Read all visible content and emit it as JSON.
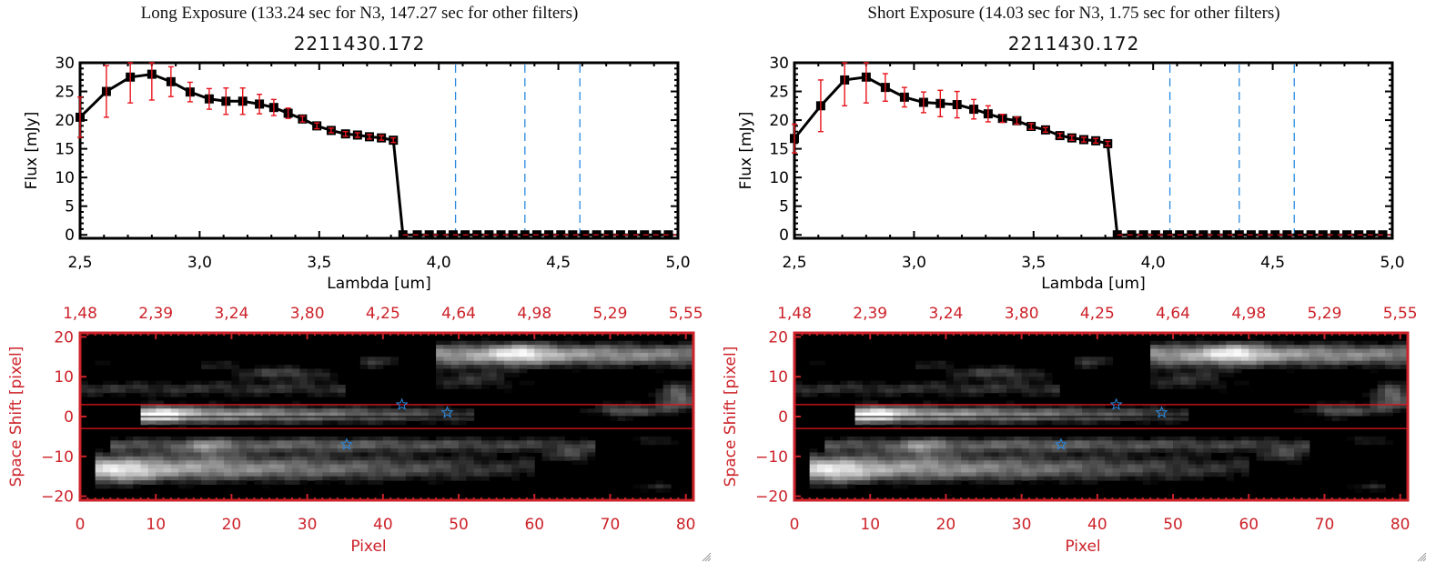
{
  "panels": [
    {
      "id": "long",
      "exposure_title": "Long Exposure (133.24 sec for N3, 147.27 sec for other filters)",
      "object_title": "2211430.172"
    },
    {
      "id": "short",
      "exposure_title": "Short Exposure (14.03 sec for N3, 1.75 sec for other filters)",
      "object_title": "2211430.172"
    }
  ],
  "colors": {
    "spectrum_line": "#000000",
    "error_bar": "#e8141c",
    "filter_line": "#2a8ae0",
    "image_axis": "#cc2229",
    "zero_line": "#e8141c",
    "star_marker": "#2a8ae0"
  },
  "chart_data": [
    {
      "type": "line",
      "panel": "long",
      "title": "2211430.172",
      "xlabel": "Lambda [um]",
      "ylabel": "Flux [mJy]",
      "xlim": [
        2.5,
        5.0
      ],
      "ylim": [
        -1,
        30
      ],
      "xticks": [
        "2.5",
        "3.0",
        "3.5",
        "4.0",
        "4.5",
        "5.0"
      ],
      "yticks": [
        "0",
        "5",
        "10",
        "15",
        "20",
        "25",
        "30"
      ],
      "x": [
        2.5,
        2.61,
        2.71,
        2.8,
        2.88,
        2.96,
        3.04,
        3.11,
        3.18,
        3.25,
        3.31,
        3.37,
        3.43,
        3.49,
        3.55,
        3.61,
        3.66,
        3.71,
        3.76,
        3.81,
        3.85,
        3.91,
        3.96,
        4.01,
        4.06,
        4.11,
        4.16,
        4.21,
        4.26,
        4.31,
        4.36,
        4.41,
        4.46,
        4.51,
        4.56,
        4.61,
        4.66,
        4.71,
        4.76,
        4.81,
        4.86,
        4.91,
        4.96
      ],
      "y": [
        20.5,
        25.0,
        27.5,
        28.0,
        26.7,
        24.9,
        23.7,
        23.3,
        23.3,
        22.8,
        22.2,
        21.2,
        20.2,
        19.0,
        18.2,
        17.6,
        17.4,
        17.1,
        16.9,
        16.5,
        0,
        0,
        0,
        0,
        0,
        0,
        0,
        0,
        0,
        0,
        0,
        0,
        0,
        0,
        0,
        0,
        0,
        0,
        0,
        0,
        0,
        0,
        0
      ],
      "yerr": [
        3.5,
        4.5,
        4.5,
        4.5,
        2.6,
        1.7,
        1.8,
        2.3,
        2.3,
        1.7,
        1.4,
        0.9,
        0.5,
        0.5,
        0.4,
        0.4,
        0.4,
        0.4,
        0.4,
        0.4,
        0,
        0,
        0,
        0,
        0,
        0,
        0,
        0,
        0,
        0,
        0,
        0,
        0,
        0,
        0,
        0,
        0,
        0,
        0,
        0,
        0,
        0,
        0
      ],
      "filter_lines_x": [
        4.07,
        4.36,
        4.59
      ],
      "zero_reference_line": 0
    },
    {
      "type": "line",
      "panel": "short",
      "title": "2211430.172",
      "xlabel": "Lambda [um]",
      "ylabel": "Flux [mJy]",
      "xlim": [
        2.5,
        5.0
      ],
      "ylim": [
        -1,
        30
      ],
      "xticks": [
        "2.5",
        "3.0",
        "3.5",
        "4.0",
        "4.5",
        "5.0"
      ],
      "yticks": [
        "0",
        "5",
        "10",
        "15",
        "20",
        "25",
        "30"
      ],
      "x": [
        2.5,
        2.61,
        2.71,
        2.8,
        2.88,
        2.96,
        3.04,
        3.11,
        3.18,
        3.25,
        3.31,
        3.37,
        3.43,
        3.49,
        3.55,
        3.61,
        3.66,
        3.71,
        3.76,
        3.81,
        3.85,
        3.91,
        3.96,
        4.01,
        4.06,
        4.11,
        4.16,
        4.21,
        4.26,
        4.31,
        4.36,
        4.41,
        4.46,
        4.51,
        4.56,
        4.61,
        4.66,
        4.71,
        4.76,
        4.81,
        4.86,
        4.91,
        4.96
      ],
      "y": [
        16.8,
        22.5,
        27.0,
        27.5,
        25.7,
        24.0,
        23.1,
        22.9,
        22.7,
        21.9,
        21.1,
        20.3,
        19.9,
        18.9,
        18.3,
        17.3,
        16.9,
        16.6,
        16.4,
        15.9,
        0,
        0,
        0,
        0,
        0,
        0,
        0,
        0,
        0,
        0,
        0,
        0,
        0,
        0,
        0,
        0,
        0,
        0,
        0,
        0,
        0,
        0,
        0
      ],
      "yerr": [
        2.5,
        4.5,
        4.5,
        4.5,
        2.4,
        1.7,
        1.8,
        2.3,
        2.3,
        1.7,
        1.4,
        0.7,
        0.6,
        0.5,
        0.4,
        0.4,
        0.4,
        0.4,
        0.4,
        0.4,
        0,
        0,
        0,
        0,
        0,
        0,
        0,
        0,
        0,
        0,
        0,
        0,
        0,
        0,
        0,
        0,
        0,
        0,
        0,
        0,
        0,
        0,
        0
      ],
      "filter_lines_x": [
        4.07,
        4.36,
        4.59
      ],
      "zero_reference_line": 0
    },
    {
      "type": "heatmap",
      "panel": "long",
      "xlabel": "Pixel",
      "ylabel": "Space Shift [pixel]",
      "xlim": [
        0,
        81
      ],
      "ylim": [
        -21,
        21
      ],
      "xticks": [
        "0",
        "10",
        "20",
        "30",
        "40",
        "50",
        "60",
        "70",
        "80"
      ],
      "yticks": [
        "-20",
        "-10",
        "0",
        "10",
        "20"
      ],
      "top_axis_ticks": [
        "1.48",
        "2.39",
        "3.24",
        "3.80",
        "4.25",
        "4.64",
        "4.98",
        "5.29",
        "5.55"
      ],
      "aperture_lines_y": [
        3,
        -3
      ],
      "center_line_y": 0,
      "star_markers": [
        {
          "x": 42.5,
          "y": 3
        },
        {
          "x": 48.5,
          "y": 1
        },
        {
          "x": 35.2,
          "y": -7
        }
      ]
    },
    {
      "type": "heatmap",
      "panel": "short",
      "xlabel": "Pixel",
      "ylabel": "Space Shift [pixel]",
      "xlim": [
        0,
        81
      ],
      "ylim": [
        -21,
        21
      ],
      "xticks": [
        "0",
        "10",
        "20",
        "30",
        "40",
        "50",
        "60",
        "70",
        "80"
      ],
      "yticks": [
        "-20",
        "-10",
        "0",
        "10",
        "20"
      ],
      "top_axis_ticks": [
        "1.48",
        "2.39",
        "3.24",
        "3.80",
        "4.25",
        "4.64",
        "4.98",
        "5.29",
        "5.55"
      ],
      "aperture_lines_y": [
        3,
        -3
      ],
      "center_line_y": 0,
      "star_markers": [
        {
          "x": 42.5,
          "y": 3
        },
        {
          "x": 48.5,
          "y": 1
        },
        {
          "x": 35.2,
          "y": -7
        }
      ]
    }
  ]
}
